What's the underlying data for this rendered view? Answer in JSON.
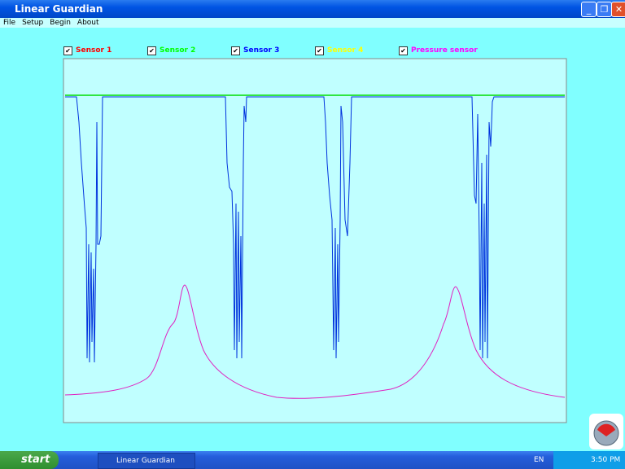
{
  "window": {
    "title": "Linear Guardian"
  },
  "menu": [
    "File",
    "Setup",
    "Begin",
    "About"
  ],
  "sensors": [
    {
      "label": "Sensor 1",
      "color": "#ff0000",
      "checked": true
    },
    {
      "label": "Sensor 2",
      "color": "#00ff00",
      "checked": true
    },
    {
      "label": "Sensor 3",
      "color": "#0000ff",
      "checked": true
    },
    {
      "label": "Sensor 4",
      "color": "#ffff00",
      "checked": true
    },
    {
      "label": "Pressure sensor",
      "color": "#ff00ff",
      "checked": true
    }
  ],
  "taskbar": {
    "start": "start",
    "task": "Linear Guardian",
    "language": "EN",
    "clock": "3:50 PM"
  }
}
